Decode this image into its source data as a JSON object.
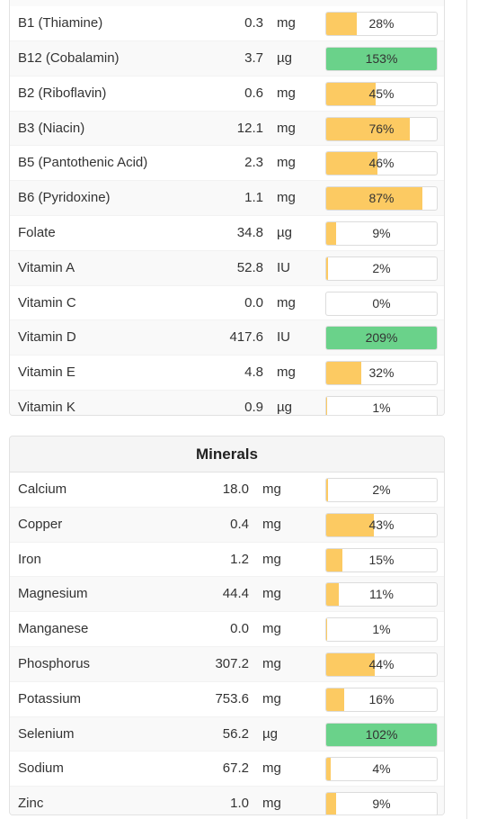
{
  "colors": {
    "partial": "#fcca62",
    "met": "#6ad28a"
  },
  "vitamins": {
    "title": "",
    "rows": [
      {
        "name": "B1 (Thiamine)",
        "amount": "0.3",
        "unit": "mg",
        "pct": "28%",
        "pct_value": 28
      },
      {
        "name": "B12 (Cobalamin)",
        "amount": "3.7",
        "unit": "µg",
        "pct": "153%",
        "pct_value": 153
      },
      {
        "name": "B2 (Riboflavin)",
        "amount": "0.6",
        "unit": "mg",
        "pct": "45%",
        "pct_value": 45
      },
      {
        "name": "B3 (Niacin)",
        "amount": "12.1",
        "unit": "mg",
        "pct": "76%",
        "pct_value": 76
      },
      {
        "name": "B5 (Pantothenic Acid)",
        "amount": "2.3",
        "unit": "mg",
        "pct": "46%",
        "pct_value": 46
      },
      {
        "name": "B6 (Pyridoxine)",
        "amount": "1.1",
        "unit": "mg",
        "pct": "87%",
        "pct_value": 87
      },
      {
        "name": "Folate",
        "amount": "34.8",
        "unit": "µg",
        "pct": "9%",
        "pct_value": 9
      },
      {
        "name": "Vitamin A",
        "amount": "52.8",
        "unit": "IU",
        "pct": "2%",
        "pct_value": 2
      },
      {
        "name": "Vitamin C",
        "amount": "0.0",
        "unit": "mg",
        "pct": "0%",
        "pct_value": 0
      },
      {
        "name": "Vitamin D",
        "amount": "417.6",
        "unit": "IU",
        "pct": "209%",
        "pct_value": 209
      },
      {
        "name": "Vitamin E",
        "amount": "4.8",
        "unit": "mg",
        "pct": "32%",
        "pct_value": 32
      },
      {
        "name": "Vitamin K",
        "amount": "0.9",
        "unit": "µg",
        "pct": "1%",
        "pct_value": 1
      }
    ]
  },
  "minerals": {
    "title": "Minerals",
    "rows": [
      {
        "name": "Calcium",
        "amount": "18.0",
        "unit": "mg",
        "pct": "2%",
        "pct_value": 2
      },
      {
        "name": "Copper",
        "amount": "0.4",
        "unit": "mg",
        "pct": "43%",
        "pct_value": 43
      },
      {
        "name": "Iron",
        "amount": "1.2",
        "unit": "mg",
        "pct": "15%",
        "pct_value": 15
      },
      {
        "name": "Magnesium",
        "amount": "44.4",
        "unit": "mg",
        "pct": "11%",
        "pct_value": 11
      },
      {
        "name": "Manganese",
        "amount": "0.0",
        "unit": "mg",
        "pct": "1%",
        "pct_value": 1
      },
      {
        "name": "Phosphorus",
        "amount": "307.2",
        "unit": "mg",
        "pct": "44%",
        "pct_value": 44
      },
      {
        "name": "Potassium",
        "amount": "753.6",
        "unit": "mg",
        "pct": "16%",
        "pct_value": 16
      },
      {
        "name": "Selenium",
        "amount": "56.2",
        "unit": "µg",
        "pct": "102%",
        "pct_value": 102
      },
      {
        "name": "Sodium",
        "amount": "67.2",
        "unit": "mg",
        "pct": "4%",
        "pct_value": 4
      },
      {
        "name": "Zinc",
        "amount": "1.0",
        "unit": "mg",
        "pct": "9%",
        "pct_value": 9
      }
    ]
  }
}
